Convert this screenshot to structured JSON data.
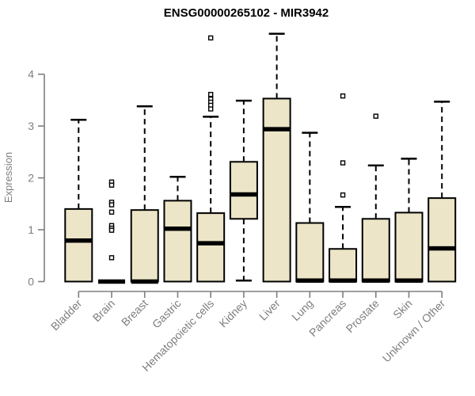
{
  "chart_data": {
    "type": "boxplot",
    "title": "ENSG00000265102 - MIR3942",
    "xlabel": "",
    "ylabel": "Expression",
    "ylim": [
      0,
      4
    ],
    "yticks": [
      0,
      1,
      2,
      3,
      4
    ],
    "grid": false,
    "legend": "none",
    "categories": [
      "Bladder",
      "Brain",
      "Breast",
      "Gastric",
      "Hematopoietic cells",
      "Kidney",
      "Liver",
      "Lung",
      "Pancreas",
      "Prostate",
      "Skin",
      "Unknown / Other"
    ],
    "boxes": [
      {
        "category": "Bladder",
        "min": 0,
        "q1": 0,
        "median": 0.79,
        "q3": 1.4,
        "max": 3.12,
        "outliers": []
      },
      {
        "category": "Brain",
        "min": 0,
        "q1": 0,
        "median": 0,
        "q3": 0,
        "max": 0,
        "outliers": [
          1.92,
          1.86,
          1.53,
          1.48,
          1.34,
          1.08,
          1.03,
          0.99,
          0.46
        ]
      },
      {
        "category": "Breast",
        "min": 0,
        "q1": 0,
        "median": 0,
        "q3": 1.38,
        "max": 3.38,
        "outliers": []
      },
      {
        "category": "Gastric",
        "min": 0,
        "q1": 0,
        "median": 1.02,
        "q3": 1.56,
        "max": 2.02,
        "outliers": []
      },
      {
        "category": "Hematopoietic cells",
        "min": 0,
        "q1": 0,
        "median": 0.74,
        "q3": 1.32,
        "max": 3.18,
        "outliers": [
          4.7,
          3.61,
          3.52,
          3.46,
          3.4,
          3.33
        ]
      },
      {
        "category": "Kidney",
        "min": 0.02,
        "q1": 1.21,
        "median": 1.68,
        "q3": 2.31,
        "max": 3.49,
        "outliers": []
      },
      {
        "category": "Liver",
        "min": 0,
        "q1": 0,
        "median": 2.94,
        "q3": 3.53,
        "max": 4.78,
        "outliers": []
      },
      {
        "category": "Lung",
        "min": 0,
        "q1": 0,
        "median": 0.02,
        "q3": 1.13,
        "max": 2.87,
        "outliers": []
      },
      {
        "category": "Pancreas",
        "min": 0,
        "q1": 0,
        "median": 0.02,
        "q3": 0.63,
        "max": 1.44,
        "outliers": [
          3.58,
          2.29,
          1.67
        ]
      },
      {
        "category": "Prostate",
        "min": 0,
        "q1": 0,
        "median": 0.02,
        "q3": 1.21,
        "max": 2.24,
        "outliers": [
          3.19
        ]
      },
      {
        "category": "Skin",
        "min": 0,
        "q1": 0,
        "median": 0.02,
        "q3": 1.33,
        "max": 2.37,
        "outliers": []
      },
      {
        "category": "Unknown / Other",
        "min": 0,
        "q1": 0,
        "median": 0.64,
        "q3": 1.61,
        "max": 3.47,
        "outliers": []
      }
    ],
    "colors": {
      "box_fill": "#ece5c8",
      "box_border": "#000000",
      "median": "#000000",
      "whisker": "#000000",
      "outlier_fill": "#ffffff",
      "outlier_border": "#000000",
      "axis": "#7e7e7e",
      "tick_text": "#7e7e7e",
      "title_text": "#000000",
      "background": "#ffffff"
    }
  }
}
